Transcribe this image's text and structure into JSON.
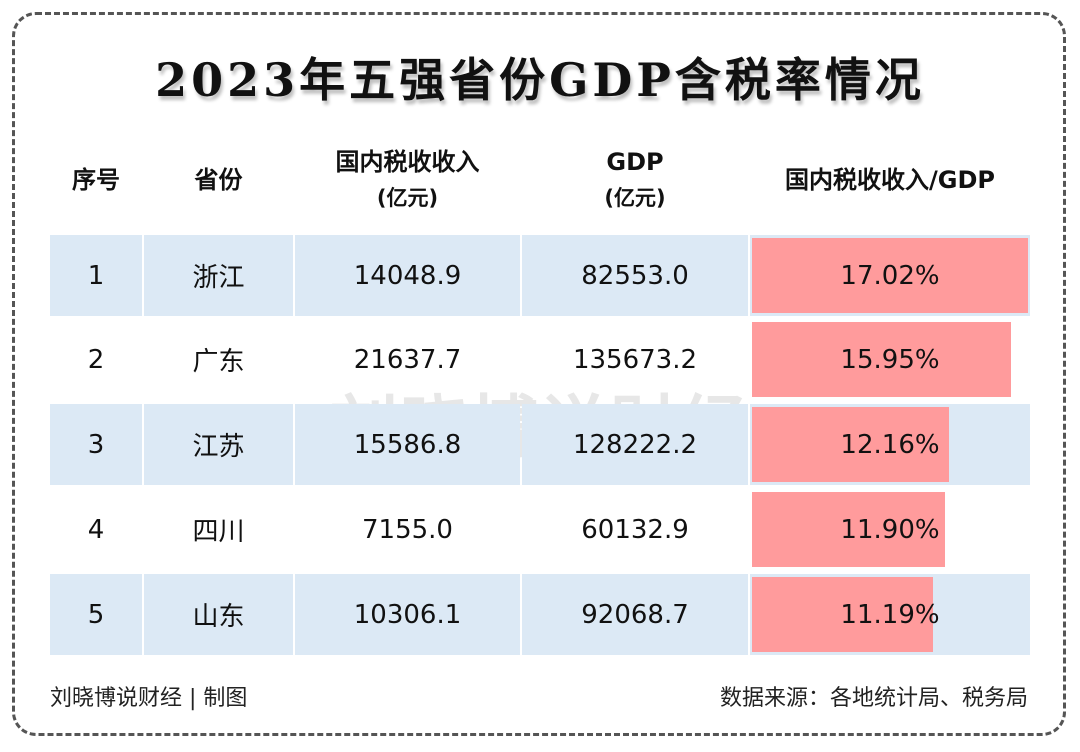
{
  "title": "2023年五强省份GDP含税率情况",
  "watermark": "刘晓博说财经",
  "colors": {
    "bar": "#ff9b9c",
    "row_band": "#dce9f5"
  },
  "footer": {
    "left": "刘晓博说财经 | 制图",
    "right": "数据来源：各地统计局、税务局"
  },
  "chart_data": {
    "type": "table",
    "title": "2023年五强省份GDP含税率情况",
    "columns": [
      {
        "label": "序号",
        "sub": ""
      },
      {
        "label": "省份",
        "sub": ""
      },
      {
        "label": "国内税收收入",
        "sub": "(亿元)"
      },
      {
        "label": "GDP",
        "sub": "(亿元)"
      },
      {
        "label": "国内税收收入/GDP",
        "sub": ""
      }
    ],
    "rows": [
      {
        "rank": "1",
        "province": "浙江",
        "tax": "14048.9",
        "gdp": "82553.0",
        "ratio": "17.02%",
        "ratio_value": 17.02
      },
      {
        "rank": "2",
        "province": "广东",
        "tax": "21637.7",
        "gdp": "135673.2",
        "ratio": "15.95%",
        "ratio_value": 15.95
      },
      {
        "rank": "3",
        "province": "江苏",
        "tax": "15586.8",
        "gdp": "128222.2",
        "ratio": "12.16%",
        "ratio_value": 12.16
      },
      {
        "rank": "4",
        "province": "四川",
        "tax": "7155.0",
        "gdp": "60132.9",
        "ratio": "11.90%",
        "ratio_value": 11.9
      },
      {
        "rank": "5",
        "province": "山东",
        "tax": "10306.1",
        "gdp": "92068.7",
        "ratio": "11.19%",
        "ratio_value": 11.19
      }
    ],
    "bar_column": "国内税收收入/GDP"
  }
}
